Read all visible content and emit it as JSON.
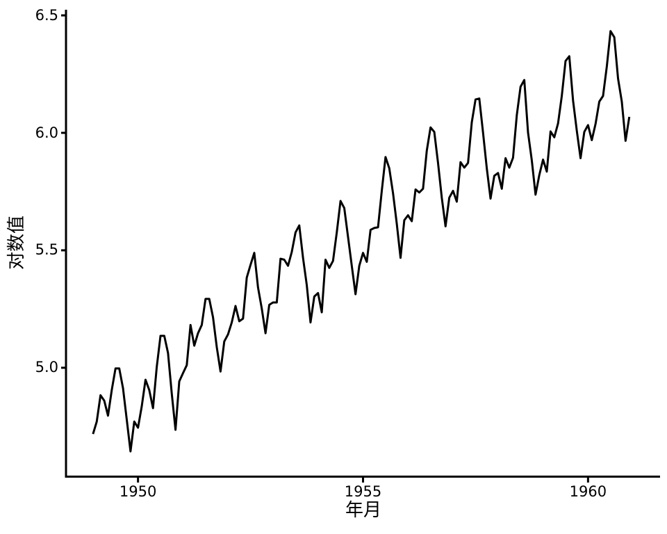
{
  "figure": {
    "background_color": "#ffffff",
    "line_color": "#000000",
    "axis_color": "#000000",
    "line_width": 3,
    "spine_width": 3,
    "tick_length": 7
  },
  "chart_data": {
    "type": "line",
    "title": "",
    "xlabel": "年月",
    "ylabel": "对数值",
    "grid": false,
    "legend": "none",
    "x_start_year": 1949,
    "points_per_year": 12,
    "xlim": [
      1948.4,
      1961.6
    ],
    "ylim": [
      4.538,
      6.524
    ],
    "xticks": {
      "values": [
        1950,
        1955,
        1960
      ],
      "labels": [
        "1950",
        "1955",
        "1960"
      ]
    },
    "yticks": {
      "values": [
        5.0,
        5.5,
        6.0,
        6.5
      ],
      "labels": [
        "5.0",
        "5.5",
        "6.0",
        "6.5"
      ]
    },
    "values": [
      4.718,
      4.771,
      4.883,
      4.86,
      4.796,
      4.905,
      4.997,
      4.997,
      4.913,
      4.779,
      4.644,
      4.771,
      4.745,
      4.836,
      4.949,
      4.905,
      4.828,
      5.004,
      5.136,
      5.136,
      5.063,
      4.89,
      4.736,
      4.942,
      4.977,
      5.011,
      5.182,
      5.094,
      5.147,
      5.182,
      5.293,
      5.293,
      5.215,
      5.088,
      4.984,
      5.112,
      5.142,
      5.193,
      5.263,
      5.198,
      5.209,
      5.384,
      5.438,
      5.489,
      5.342,
      5.252,
      5.147,
      5.268,
      5.278,
      5.278,
      5.464,
      5.46,
      5.434,
      5.493,
      5.576,
      5.606,
      5.468,
      5.352,
      5.193,
      5.303,
      5.318,
      5.236,
      5.46,
      5.425,
      5.455,
      5.576,
      5.71,
      5.68,
      5.557,
      5.434,
      5.313,
      5.434,
      5.489,
      5.451,
      5.587,
      5.595,
      5.598,
      5.753,
      5.897,
      5.849,
      5.743,
      5.613,
      5.468,
      5.628,
      5.649,
      5.624,
      5.759,
      5.746,
      5.762,
      5.924,
      6.023,
      6.004,
      5.872,
      5.724,
      5.602,
      5.724,
      5.753,
      5.707,
      5.875,
      5.852,
      5.872,
      6.045,
      6.142,
      6.146,
      6.001,
      5.849,
      5.72,
      5.817,
      5.829,
      5.762,
      5.892,
      5.852,
      5.894,
      6.075,
      6.196,
      6.225,
      6.001,
      5.883,
      5.737,
      5.82,
      5.886,
      5.835,
      6.006,
      5.981,
      6.04,
      6.157,
      6.306,
      6.326,
      6.138,
      6.009,
      5.892,
      6.004,
      6.033,
      5.969,
      6.038,
      6.133,
      6.157,
      6.282,
      6.433,
      6.407,
      6.231,
      6.133,
      5.966,
      6.068
    ]
  }
}
